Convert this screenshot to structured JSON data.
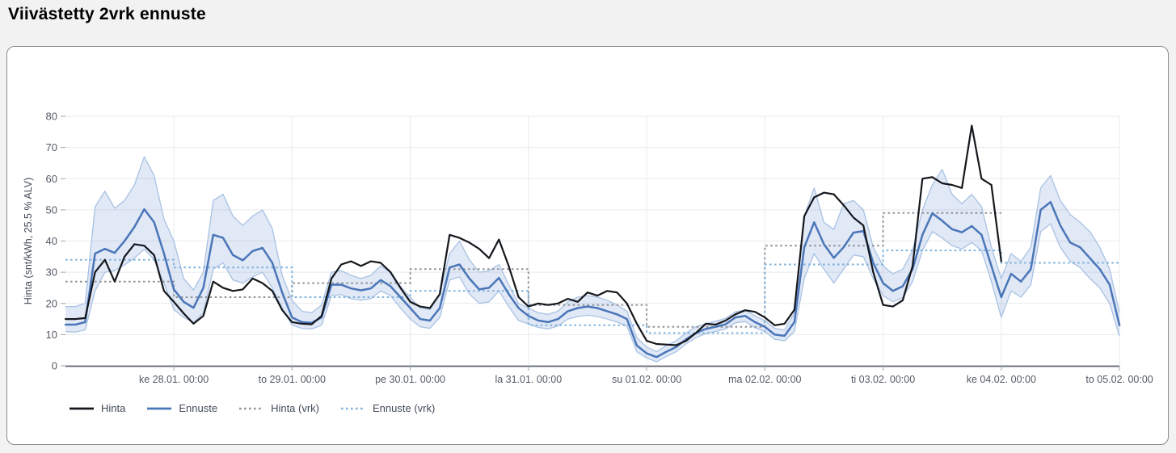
{
  "page": {
    "title": "Viivästetty 2vrk ennuste"
  },
  "chart_data": {
    "type": "line",
    "title": "Viivästetty 2vrk ennuste",
    "xlabel": "",
    "ylabel": "Hinta (snt/kWh, 25.5 % ALV)",
    "ylim": [
      0,
      80
    ],
    "yticks": [
      0,
      10,
      20,
      30,
      40,
      50,
      60,
      70,
      80
    ],
    "grid": true,
    "legend_position": "bottom-left",
    "x_start_hour": 2,
    "x_step_hours": 2,
    "x_end_hour": 216,
    "xticks": [
      {
        "hour": 24,
        "label": "ke 28.01. 00:00"
      },
      {
        "hour": 48,
        "label": "to 29.01. 00:00"
      },
      {
        "hour": 72,
        "label": "pe 30.01. 00:00"
      },
      {
        "hour": 96,
        "label": "la 31.01. 00:00"
      },
      {
        "hour": 120,
        "label": "su 01.02. 00:00"
      },
      {
        "hour": 144,
        "label": "ma 02.02. 00:00"
      },
      {
        "hour": 168,
        "label": "ti 03.02. 00:00"
      },
      {
        "hour": 192,
        "label": "ke 04.02. 00:00"
      },
      {
        "hour": 216,
        "label": "to 05.02. 00:00"
      }
    ],
    "colors": {
      "grid": "#e8eaec",
      "axis": "#5b636b",
      "tick": "#9aa5b1",
      "tick_text": "#545b64",
      "axis_title": "#424b57"
    },
    "series": [
      {
        "name": "Hinta",
        "color": "#14171c",
        "width": 2.2,
        "values": [
          15,
          15,
          15.3,
          30,
          34,
          27,
          35,
          39,
          38.5,
          35.5,
          24,
          20.5,
          16.8,
          13.5,
          16,
          27,
          25,
          24,
          24.5,
          28,
          26.5,
          24,
          17.9,
          14,
          13.5,
          13.3,
          16,
          28,
          32.5,
          33.5,
          32,
          33.5,
          33,
          30,
          25,
          20.5,
          19,
          18.5,
          23,
          42,
          41,
          39.5,
          37.5,
          34.5,
          40.5,
          32,
          22,
          19,
          20,
          19.5,
          20,
          21.5,
          20.5,
          23.5,
          22.5,
          24,
          23.5,
          20,
          13.5,
          8,
          7,
          6.8,
          6.6,
          8,
          10.5,
          13.5,
          13.2,
          14.5,
          16.5,
          17.8,
          17.3,
          15.5,
          13,
          13.5,
          18,
          48,
          54,
          55.5,
          55,
          51.5,
          47.5,
          45,
          30,
          19.5,
          19,
          21,
          32,
          60,
          60.5,
          58.5,
          58,
          57,
          77,
          60,
          58,
          33.5,
          null,
          null,
          null,
          null,
          null,
          null,
          null,
          null,
          null,
          null,
          null,
          null
        ]
      },
      {
        "name": "Ennuste",
        "color": "#4a76b8",
        "width": 2.5,
        "values": [
          13.2,
          13.2,
          14,
          36,
          37.5,
          36.2,
          40,
          44.5,
          50.2,
          46,
          36,
          24.5,
          20.5,
          18.6,
          25,
          42,
          41,
          35.5,
          33.8,
          36.8,
          37.8,
          33,
          23.5,
          15.5,
          14,
          13.8,
          15.5,
          26,
          26,
          24.8,
          24.2,
          24.8,
          27.5,
          25.5,
          22,
          18.5,
          15,
          14.5,
          18.5,
          31.5,
          32.5,
          28,
          24.5,
          25,
          28.2,
          23,
          18.5,
          16,
          14.5,
          14,
          15,
          17.5,
          18.5,
          19,
          18.5,
          17.5,
          16.5,
          15,
          6.5,
          4,
          2.8,
          4.5,
          6,
          8.5,
          10.5,
          11.8,
          12.5,
          13.3,
          15.5,
          16,
          14,
          12.5,
          10,
          9.6,
          14,
          38,
          46,
          39,
          34.6,
          38,
          42.7,
          43.2,
          33,
          26.5,
          24,
          25.5,
          31,
          42,
          48.9,
          46.5,
          43.8,
          42.8,
          44.8,
          42,
          32,
          22,
          29.5,
          27,
          31,
          50,
          52.5,
          45,
          39.5,
          38,
          34.5,
          31,
          26,
          13
        ]
      }
    ],
    "band": {
      "name": "Ennuste-epävarmuus",
      "fill": "#93aedd",
      "fill_opacity": 0.28,
      "edge": "#a9c2e3",
      "upper": [
        19,
        19,
        20,
        51,
        56,
        50.5,
        53,
        58,
        67,
        61,
        47,
        40,
        28,
        24.3,
        30,
        53,
        55,
        48,
        45,
        48,
        50,
        44,
        29,
        21,
        17.5,
        17,
        19.5,
        30,
        30.5,
        29,
        28,
        29,
        32,
        30,
        25.5,
        22,
        18.5,
        18,
        23,
        36,
        40,
        34,
        30,
        30.5,
        32.5,
        26,
        20,
        18.5,
        17,
        16.5,
        17.5,
        20.5,
        22,
        22.5,
        22,
        21,
        19.5,
        17.5,
        9,
        6,
        4.5,
        6.5,
        8,
        10.5,
        12.5,
        13.5,
        14.3,
        15.2,
        17.3,
        17.8,
        16,
        14.5,
        12,
        11.5,
        17,
        48,
        57,
        46,
        43.7,
        52,
        53,
        50,
        38,
        32,
        29.5,
        31,
        37,
        50,
        58,
        63,
        55,
        52,
        55,
        51,
        38,
        28,
        36,
        33.5,
        38,
        57,
        61,
        53,
        48.5,
        46,
        43,
        38,
        31,
        17
      ],
      "lower": [
        11,
        10.8,
        11.5,
        24,
        30,
        30.5,
        32.4,
        34.5,
        37.3,
        34,
        26.5,
        18,
        15.5,
        13.8,
        17,
        31,
        33,
        27.5,
        26.5,
        28.5,
        30,
        25,
        18.5,
        13,
        12,
        11.8,
        13,
        22.5,
        22.8,
        21.5,
        21,
        21.5,
        24,
        22.5,
        18.5,
        15,
        12.5,
        12,
        15.5,
        27.5,
        28.5,
        23,
        20,
        20.5,
        24,
        19,
        14.5,
        13.5,
        12.3,
        11.8,
        12.8,
        15,
        15.8,
        16.2,
        15.8,
        15,
        14,
        12.8,
        4.5,
        2.5,
        1.3,
        3,
        4.5,
        7,
        9,
        10.3,
        11,
        11.8,
        13.8,
        14.2,
        12.2,
        11,
        8.5,
        8,
        11,
        28,
        36,
        31,
        26.5,
        31,
        35.5,
        35,
        28,
        22.5,
        20.5,
        21.8,
        27,
        37,
        43,
        41,
        38.5,
        37.5,
        39.5,
        37,
        27,
        15.5,
        24,
        22,
        26,
        43,
        45.5,
        38,
        33.5,
        31.5,
        28,
        25,
        20,
        9.5
      ]
    },
    "step_series": [
      {
        "name": "Hinta (vrk)",
        "color": "#8f9498",
        "width": 2,
        "start_hour": 2,
        "daily_values": [
          27,
          22,
          26.5,
          31,
          19.5,
          12.5,
          38.5,
          49
        ]
      },
      {
        "name": "Ennuste (vrk)",
        "color": "#7fb3dd",
        "width": 2,
        "start_hour": 2,
        "daily_values": [
          34,
          31.5,
          22,
          24,
          13,
          10.5,
          32.5,
          37,
          33
        ]
      }
    ]
  }
}
